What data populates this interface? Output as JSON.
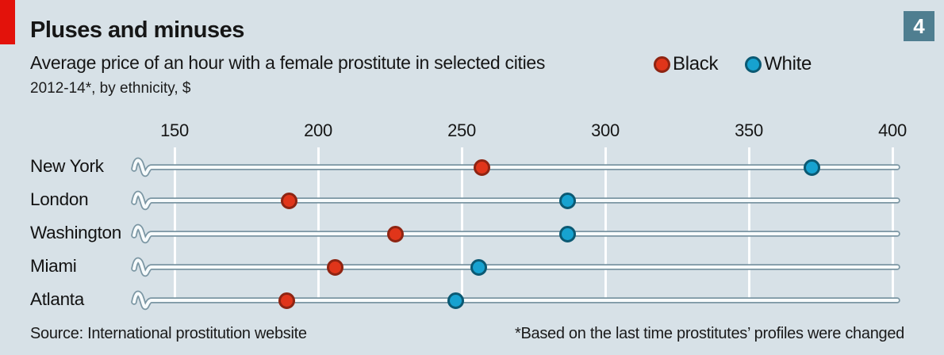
{
  "badge": "4",
  "header": {
    "title": "Pluses and minuses",
    "subtitle": "Average price of an hour with a female prostitute in selected cities",
    "unit_note": "2012-14*, by ethnicity, $"
  },
  "legend": [
    {
      "label": "Black",
      "fill": "#e0351a",
      "ring": "#8e2412"
    },
    {
      "label": "White",
      "fill": "#17a2d0",
      "ring": "#0b5973"
    }
  ],
  "chart_data": {
    "type": "scatter",
    "title": "Pluses and minuses",
    "subtitle": "Average price of an hour with a female prostitute in selected cities",
    "unit": "2012-14*, by ethnicity, $",
    "categories": [
      "New York",
      "London",
      "Washington",
      "Miami",
      "Atlanta"
    ],
    "series": [
      {
        "name": "Black",
        "values": [
          257,
          190,
          227,
          206,
          189
        ]
      },
      {
        "name": "White",
        "values": [
          372,
          287,
          287,
          256,
          248
        ]
      }
    ],
    "x_ticks": [
      150,
      200,
      250,
      300,
      350,
      400
    ],
    "xlim": [
      150,
      400
    ],
    "axis_break": true,
    "grid": "vertical-white",
    "legend_position": "top-right"
  },
  "footer": {
    "source": "Source: International prostitution website",
    "footnote": "*Based on the last time prostitutes’ profiles were changed"
  },
  "colors": {
    "background": "#d7e1e7",
    "accent_red": "#e3120b",
    "badge_bg": "#4f7e90",
    "ink": "#141414",
    "track_stroke": "#7b96a3",
    "track_fill": "#f7fbfc",
    "gridline": "#fdfeff"
  }
}
